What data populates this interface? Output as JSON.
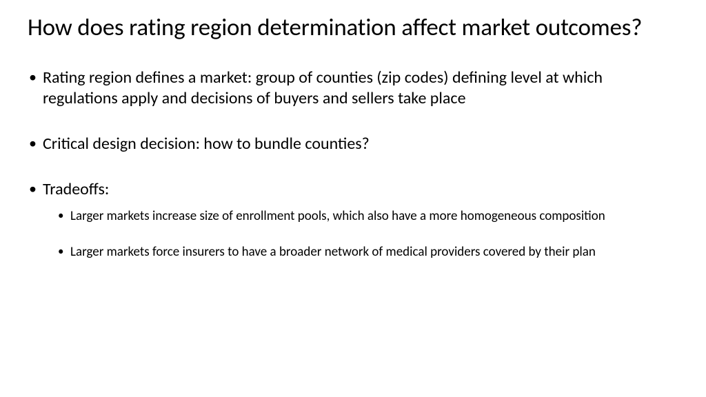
{
  "slide": {
    "title": "How does rating region determination affect market outcomes?",
    "bullets": [
      {
        "text": "Rating region defines a market: group of counties (zip codes) defining level at which regulations apply and decisions of buyers and sellers take place"
      },
      {
        "text": "Critical design decision: how to bundle counties?"
      },
      {
        "text": "Tradeoffs:",
        "sub": [
          "Larger markets increase size of enrollment pools, which also have a more homogeneous composition",
          "Larger markets force insurers to have a broader network of medical providers covered by their plan"
        ]
      }
    ]
  },
  "style": {
    "background_color": "#ffffff",
    "text_color": "#000000",
    "title_fontsize": 35,
    "level1_fontsize": 24,
    "level2_fontsize": 19,
    "font_family": "Calibri"
  }
}
